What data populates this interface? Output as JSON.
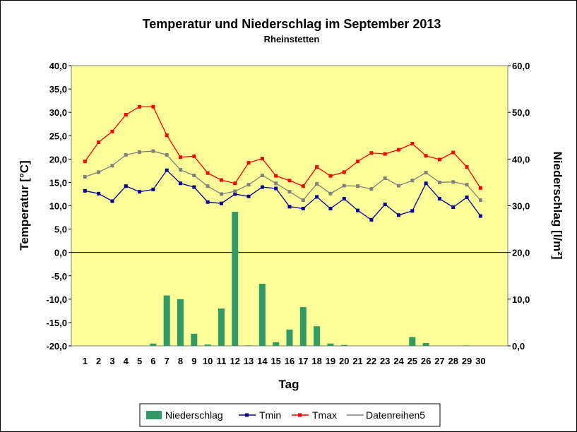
{
  "chart_data": {
    "type": "bar+line",
    "title": "Temperatur und Niederschlag im September 2013",
    "subtitle": "Rheinstetten",
    "xlabel": "Tag",
    "ylabel_left": "Temperatur [°C]",
    "ylabel_right": "Niederschlag [l/m²]",
    "ylim_left": [
      -20,
      40
    ],
    "ylim_right": [
      0,
      60
    ],
    "yticks_left": [
      "40,0",
      "35,0",
      "30,0",
      "25,0",
      "20,0",
      "15,0",
      "10,0",
      "5,0",
      "0,0",
      "-5,0",
      "-10,0",
      "-15,0",
      "-20,0"
    ],
    "yticks_right": [
      "60,0",
      "50,0",
      "40,0",
      "30,0",
      "20,0",
      "10,0",
      "0,0"
    ],
    "categories": [
      "1",
      "2",
      "3",
      "4",
      "5",
      "6",
      "7",
      "8",
      "9",
      "10",
      "11",
      "12",
      "13",
      "14",
      "15",
      "16",
      "17",
      "18",
      "19",
      "20",
      "21",
      "22",
      "23",
      "24",
      "25",
      "26",
      "27",
      "28",
      "29",
      "30"
    ],
    "plot_background": "#ffff99",
    "grid": false,
    "legend_position": "bottom",
    "series": [
      {
        "name": "Niederschlag",
        "type": "bar",
        "axis": "right",
        "color": "#339966",
        "values": [
          0,
          0,
          0,
          0,
          0,
          0.5,
          10.8,
          10.0,
          2.6,
          0.3,
          8.0,
          28.7,
          0.1,
          13.3,
          0.8,
          3.5,
          8.3,
          4.2,
          0.5,
          0.2,
          0,
          0,
          0,
          0,
          1.9,
          0.6,
          0,
          0,
          0.1,
          0
        ]
      },
      {
        "name": "Tmin",
        "type": "line",
        "axis": "left",
        "color": "#000099",
        "values": [
          13.2,
          12.6,
          11.0,
          14.2,
          13.0,
          13.5,
          17.6,
          14.8,
          14.0,
          10.8,
          10.5,
          12.5,
          12.0,
          14.0,
          13.7,
          9.8,
          9.4,
          11.9,
          9.4,
          11.5,
          9.0,
          7.0,
          10.3,
          8.0,
          8.9,
          14.8,
          11.5,
          9.7,
          11.8,
          7.8
        ]
      },
      {
        "name": "Tmax",
        "type": "line",
        "axis": "left",
        "color": "#ff0000",
        "values": [
          19.5,
          23.6,
          25.9,
          29.5,
          31.2,
          31.2,
          25.1,
          20.4,
          20.6,
          17.0,
          15.5,
          14.8,
          19.2,
          20.1,
          16.4,
          15.4,
          14.2,
          18.3,
          16.4,
          17.2,
          19.5,
          21.3,
          21.1,
          22.0,
          23.3,
          20.7,
          19.9,
          21.4,
          18.3,
          13.8
        ]
      },
      {
        "name": "Datenreihen5",
        "type": "line",
        "axis": "left",
        "color": "#808080",
        "values": [
          16.2,
          17.2,
          18.6,
          20.9,
          21.5,
          21.7,
          20.9,
          17.7,
          16.5,
          14.2,
          12.5,
          13.1,
          14.5,
          16.5,
          14.8,
          13.0,
          11.2,
          14.7,
          12.6,
          14.3,
          14.2,
          13.6,
          15.9,
          14.3,
          15.4,
          17.1,
          15.0,
          15.1,
          14.5,
          11.2
        ]
      }
    ]
  }
}
